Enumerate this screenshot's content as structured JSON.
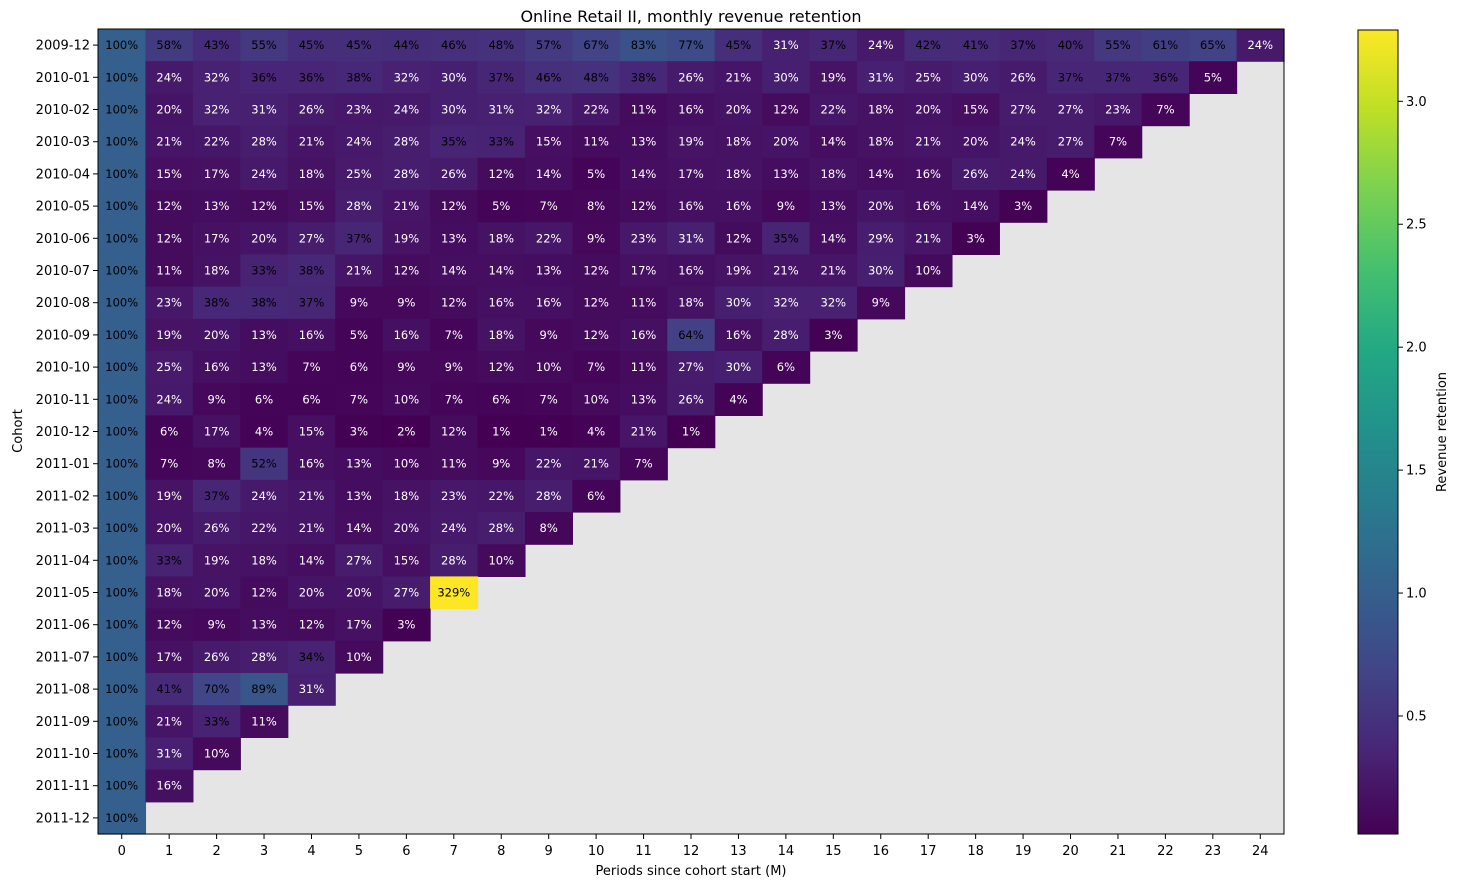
{
  "chart_data": {
    "type": "heatmap",
    "title": "Online Retail II, monthly revenue retention",
    "xlabel": "Periods since cohort start (M)",
    "ylabel": "Cohort",
    "colorbar_label": "Revenue retention",
    "colormap": "viridis",
    "missing_color": "#e5e5e5",
    "color_range": [
      0.02,
      3.29
    ],
    "colorbar_ticks": [
      0.5,
      1.0,
      1.5,
      2.0,
      2.5,
      3.0
    ],
    "colorbar_tick_labels": [
      "0.5",
      "1.0",
      "1.5",
      "2.0",
      "2.5",
      "3.0"
    ],
    "periods": [
      "0",
      "1",
      "2",
      "3",
      "4",
      "5",
      "6",
      "7",
      "8",
      "9",
      "10",
      "11",
      "12",
      "13",
      "14",
      "15",
      "16",
      "17",
      "18",
      "19",
      "20",
      "21",
      "22",
      "23",
      "24"
    ],
    "cohorts": [
      "2009-12",
      "2010-01",
      "2010-02",
      "2010-03",
      "2010-04",
      "2010-05",
      "2010-06",
      "2010-07",
      "2010-08",
      "2010-09",
      "2010-10",
      "2010-11",
      "2010-12",
      "2011-01",
      "2011-02",
      "2011-03",
      "2011-04",
      "2011-05",
      "2011-06",
      "2011-07",
      "2011-08",
      "2011-09",
      "2011-10",
      "2011-11",
      "2011-12"
    ],
    "values": [
      [
        100,
        58,
        43,
        55,
        45,
        45,
        44,
        46,
        48,
        57,
        67,
        83,
        77,
        45,
        31,
        37,
        24,
        42,
        41,
        37,
        40,
        55,
        61,
        65,
        24
      ],
      [
        100,
        24,
        32,
        36,
        36,
        38,
        32,
        30,
        37,
        46,
        48,
        38,
        26,
        21,
        30,
        19,
        31,
        25,
        30,
        26,
        37,
        37,
        36,
        5
      ],
      [
        100,
        20,
        32,
        31,
        26,
        23,
        24,
        30,
        31,
        32,
        22,
        11,
        16,
        20,
        12,
        22,
        18,
        20,
        15,
        27,
        27,
        23,
        7
      ],
      [
        100,
        21,
        22,
        28,
        21,
        24,
        28,
        35,
        33,
        15,
        11,
        13,
        19,
        18,
        20,
        14,
        18,
        21,
        20,
        24,
        27,
        7
      ],
      [
        100,
        15,
        17,
        24,
        18,
        25,
        28,
        26,
        12,
        14,
        5,
        14,
        17,
        18,
        13,
        18,
        14,
        16,
        26,
        24,
        4
      ],
      [
        100,
        12,
        13,
        12,
        15,
        28,
        21,
        12,
        5,
        7,
        8,
        12,
        16,
        16,
        9,
        13,
        20,
        16,
        14,
        3
      ],
      [
        100,
        12,
        17,
        20,
        27,
        37,
        19,
        13,
        18,
        22,
        9,
        23,
        31,
        12,
        35,
        14,
        29,
        21,
        3
      ],
      [
        100,
        11,
        18,
        33,
        38,
        21,
        12,
        14,
        14,
        13,
        12,
        17,
        16,
        19,
        21,
        21,
        30,
        10
      ],
      [
        100,
        23,
        38,
        38,
        37,
        9,
        9,
        12,
        16,
        16,
        12,
        11,
        18,
        30,
        32,
        32,
        9
      ],
      [
        100,
        19,
        20,
        13,
        16,
        5,
        16,
        7,
        18,
        9,
        12,
        16,
        64,
        16,
        28,
        3
      ],
      [
        100,
        25,
        16,
        13,
        7,
        6,
        9,
        9,
        12,
        10,
        7,
        11,
        27,
        30,
        6
      ],
      [
        100,
        24,
        9,
        6,
        6,
        7,
        10,
        7,
        6,
        7,
        10,
        13,
        26,
        4
      ],
      [
        100,
        6,
        17,
        4,
        15,
        3,
        2,
        12,
        1,
        1,
        4,
        21,
        1
      ],
      [
        100,
        7,
        8,
        52,
        16,
        13,
        10,
        11,
        9,
        22,
        21,
        7
      ],
      [
        100,
        19,
        37,
        24,
        21,
        13,
        18,
        23,
        22,
        28,
        6
      ],
      [
        100,
        20,
        26,
        22,
        21,
        14,
        20,
        24,
        28,
        8
      ],
      [
        100,
        33,
        19,
        18,
        14,
        27,
        15,
        28,
        10
      ],
      [
        100,
        18,
        20,
        12,
        20,
        20,
        27,
        329
      ],
      [
        100,
        12,
        9,
        13,
        12,
        17,
        3
      ],
      [
        100,
        17,
        26,
        28,
        34,
        10
      ],
      [
        100,
        41,
        70,
        89,
        31
      ],
      [
        100,
        21,
        33,
        11
      ],
      [
        100,
        31,
        10
      ],
      [
        100,
        16
      ],
      [
        100
      ]
    ]
  }
}
